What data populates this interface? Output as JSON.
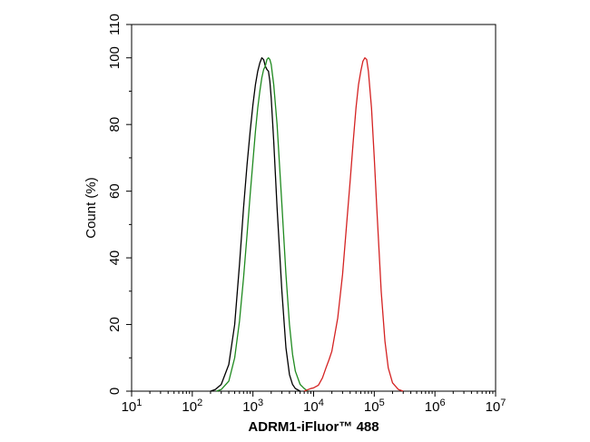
{
  "chart_data": {
    "type": "line",
    "title": "",
    "xlabel": "ADRM1-iFluor™ 488",
    "ylabel": "Count  (%)",
    "x_scale": "log",
    "xlim": [
      10,
      10000000
    ],
    "ylim": [
      0,
      110
    ],
    "x_ticks": [
      {
        "value": 10,
        "base": "10",
        "exp": "1"
      },
      {
        "value": 100,
        "base": "10",
        "exp": "2"
      },
      {
        "value": 1000,
        "base": "10",
        "exp": "3"
      },
      {
        "value": 10000,
        "base": "10",
        "exp": "4"
      },
      {
        "value": 100000,
        "base": "10",
        "exp": "5"
      },
      {
        "value": 1000000,
        "base": "10",
        "exp": "6"
      },
      {
        "value": 10000000,
        "base": "10",
        "exp": "7"
      }
    ],
    "y_ticks": [
      {
        "value": 0,
        "label": "0"
      },
      {
        "value": 20,
        "label": "20"
      },
      {
        "value": 40,
        "label": "40"
      },
      {
        "value": 60,
        "label": "60"
      },
      {
        "value": 80,
        "label": "80"
      },
      {
        "value": 100,
        "label": "100"
      },
      {
        "value": 110,
        "label": "110"
      }
    ],
    "grid": false,
    "series": [
      {
        "color": "#000000",
        "points": [
          [
            200,
            0
          ],
          [
            240,
            0.5
          ],
          [
            300,
            2
          ],
          [
            400,
            8
          ],
          [
            500,
            20
          ],
          [
            600,
            38
          ],
          [
            700,
            55
          ],
          [
            800,
            68
          ],
          [
            900,
            78
          ],
          [
            1000,
            86
          ],
          [
            1100,
            92
          ],
          [
            1200,
            96
          ],
          [
            1300,
            98.5
          ],
          [
            1400,
            100
          ],
          [
            1500,
            99.5
          ],
          [
            1600,
            97.5
          ],
          [
            1700,
            96.5
          ],
          [
            1800,
            96
          ],
          [
            1900,
            93
          ],
          [
            2000,
            88
          ],
          [
            2200,
            75
          ],
          [
            2500,
            55
          ],
          [
            3000,
            30
          ],
          [
            3500,
            13
          ],
          [
            4000,
            5
          ],
          [
            4500,
            2
          ],
          [
            5000,
            0.8
          ],
          [
            6000,
            0
          ]
        ]
      },
      {
        "color": "#1f8a1f",
        "points": [
          [
            250,
            0
          ],
          [
            300,
            0.5
          ],
          [
            400,
            3
          ],
          [
            500,
            10
          ],
          [
            600,
            21
          ],
          [
            700,
            34
          ],
          [
            800,
            47
          ],
          [
            900,
            59
          ],
          [
            1000,
            69
          ],
          [
            1100,
            78
          ],
          [
            1200,
            85
          ],
          [
            1300,
            90
          ],
          [
            1400,
            94
          ],
          [
            1500,
            96.5
          ],
          [
            1600,
            97.5
          ],
          [
            1700,
            99.5
          ],
          [
            1800,
            100
          ],
          [
            1900,
            99.5
          ],
          [
            2000,
            98
          ],
          [
            2200,
            92
          ],
          [
            2500,
            80
          ],
          [
            3000,
            56
          ],
          [
            3500,
            35
          ],
          [
            4000,
            20
          ],
          [
            4500,
            11
          ],
          [
            5000,
            6
          ],
          [
            6000,
            2
          ],
          [
            7000,
            0.8
          ],
          [
            8000,
            0
          ]
        ]
      },
      {
        "color": "#d42222",
        "points": [
          [
            7000,
            0
          ],
          [
            9000,
            0.8
          ],
          [
            10000,
            1
          ],
          [
            12000,
            1.8
          ],
          [
            14000,
            4
          ],
          [
            16000,
            7
          ],
          [
            18000,
            9.5
          ],
          [
            20000,
            12
          ],
          [
            25000,
            22
          ],
          [
            30000,
            35
          ],
          [
            35000,
            50
          ],
          [
            40000,
            63
          ],
          [
            45000,
            75
          ],
          [
            50000,
            85
          ],
          [
            55000,
            92
          ],
          [
            60000,
            96
          ],
          [
            65000,
            99
          ],
          [
            70000,
            100
          ],
          [
            75000,
            99.5
          ],
          [
            80000,
            96
          ],
          [
            90000,
            85
          ],
          [
            100000,
            70
          ],
          [
            110000,
            55
          ],
          [
            120000,
            42
          ],
          [
            130000,
            30
          ],
          [
            150000,
            15
          ],
          [
            170000,
            7
          ],
          [
            200000,
            2.5
          ],
          [
            250000,
            0.5
          ],
          [
            300000,
            0
          ]
        ]
      }
    ]
  }
}
